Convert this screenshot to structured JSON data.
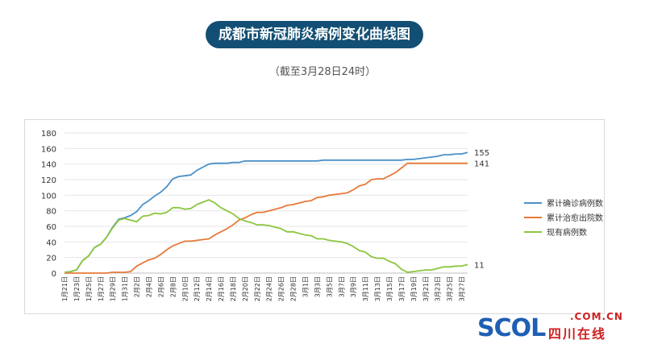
{
  "header": {
    "title": "成都市新冠肺炎病例变化曲线图",
    "subtitle": "（截至3月28日24时）"
  },
  "logo": {
    "main_text": "SCOL",
    "domain_text": ".COM.CN",
    "cn_text": "四川在线"
  },
  "colors": {
    "title_bg": "#134f74",
    "confirmed": "#4a90c8",
    "cured": "#e8793a",
    "current": "#8cc63f",
    "grid": "#e6e6e6"
  },
  "chart_data": {
    "type": "line",
    "ylim": [
      0,
      180
    ],
    "yticks": [
      0,
      20,
      40,
      60,
      80,
      100,
      120,
      140,
      160,
      180
    ],
    "grid": "horizontal",
    "legend_position": "right",
    "categories": [
      "1月21日",
      "1月22日",
      "1月23日",
      "1月24日",
      "1月25日",
      "1月26日",
      "1月27日",
      "1月28日",
      "1月29日",
      "1月30日",
      "1月31日",
      "2月1日",
      "2月2日",
      "2月3日",
      "2月4日",
      "2月5日",
      "2月6日",
      "2月7日",
      "2月8日",
      "2月9日",
      "2月10日",
      "2月11日",
      "2月12日",
      "2月13日",
      "2月14日",
      "2月15日",
      "2月16日",
      "2月17日",
      "2月18日",
      "2月19日",
      "2月20日",
      "2月21日",
      "2月22日",
      "2月23日",
      "2月24日",
      "2月25日",
      "2月26日",
      "2月27日",
      "2月28日",
      "2月29日",
      "3月1日",
      "3月2日",
      "3月3日",
      "3月4日",
      "3月5日",
      "3月6日",
      "3月7日",
      "3月8日",
      "3月9日",
      "3月10日",
      "3月11日",
      "3月12日",
      "3月13日",
      "3月14日",
      "3月15日",
      "3月16日",
      "3月17日",
      "3月18日",
      "3月19日",
      "3月20日",
      "3月21日",
      "3月22日",
      "3月23日",
      "3月24日",
      "3月25日",
      "3月26日",
      "3月27日",
      "3月28日"
    ],
    "tick_labels": [
      "1月21日",
      "1月23日",
      "1月25日",
      "1月27日",
      "1月29日",
      "1月31日",
      "2月2日",
      "2月4日",
      "2月6日",
      "2月8日",
      "2月10日",
      "2月12日",
      "2月14日",
      "2月16日",
      "2月18日",
      "2月20日",
      "2月22日",
      "2月24日",
      "2月26日",
      "2月28日",
      "3月1日",
      "3月3日",
      "3月5日",
      "3月7日",
      "3月9日",
      "3月11日",
      "3月13日",
      "3月15日",
      "3月17日",
      "3月19日",
      "3月21日",
      "3月23日",
      "3月25日",
      "3月27日"
    ],
    "series": [
      {
        "name": "累计确诊病例数",
        "end_label": "155",
        "values": [
          1,
          2,
          4,
          16,
          22,
          33,
          37,
          46,
          59,
          69,
          71,
          74,
          79,
          88,
          93,
          99,
          104,
          111,
          121,
          124,
          125,
          126,
          132,
          136,
          140,
          141,
          141,
          141,
          142,
          142,
          144,
          144,
          144,
          144,
          144,
          144,
          144,
          144,
          144,
          144,
          144,
          144,
          144,
          145,
          145,
          145,
          145,
          145,
          145,
          145,
          145,
          145,
          145,
          145,
          145,
          145,
          145,
          146,
          146,
          147,
          148,
          149,
          150,
          152,
          152,
          153,
          153,
          155
        ]
      },
      {
        "name": "累计治愈出院数",
        "end_label": "141",
        "values": [
          0,
          0,
          0,
          0,
          0,
          0,
          0,
          0,
          1,
          1,
          1,
          2,
          9,
          13,
          17,
          19,
          24,
          30,
          35,
          38,
          41,
          41,
          42,
          43,
          44,
          49,
          53,
          57,
          62,
          68,
          71,
          75,
          78,
          78,
          80,
          82,
          84,
          87,
          88,
          90,
          92,
          93,
          97,
          98,
          100,
          101,
          102,
          103,
          107,
          112,
          114,
          120,
          121,
          121,
          125,
          129,
          135,
          141,
          141,
          141,
          141,
          141,
          141,
          141,
          141,
          141,
          141,
          141
        ]
      },
      {
        "name": "现有病例数",
        "end_label": "11",
        "values": [
          1,
          2,
          4,
          16,
          22,
          33,
          37,
          46,
          58,
          68,
          70,
          68,
          66,
          73,
          74,
          77,
          76,
          78,
          84,
          84,
          82,
          83,
          88,
          91,
          94,
          90,
          84,
          80,
          76,
          70,
          67,
          65,
          62,
          62,
          61,
          59,
          57,
          53,
          53,
          51,
          49,
          48,
          44,
          44,
          42,
          41,
          40,
          38,
          34,
          29,
          27,
          21,
          19,
          19,
          15,
          12,
          5,
          1,
          2,
          3,
          4,
          4,
          6,
          8,
          8,
          9,
          9,
          11
        ]
      }
    ]
  }
}
